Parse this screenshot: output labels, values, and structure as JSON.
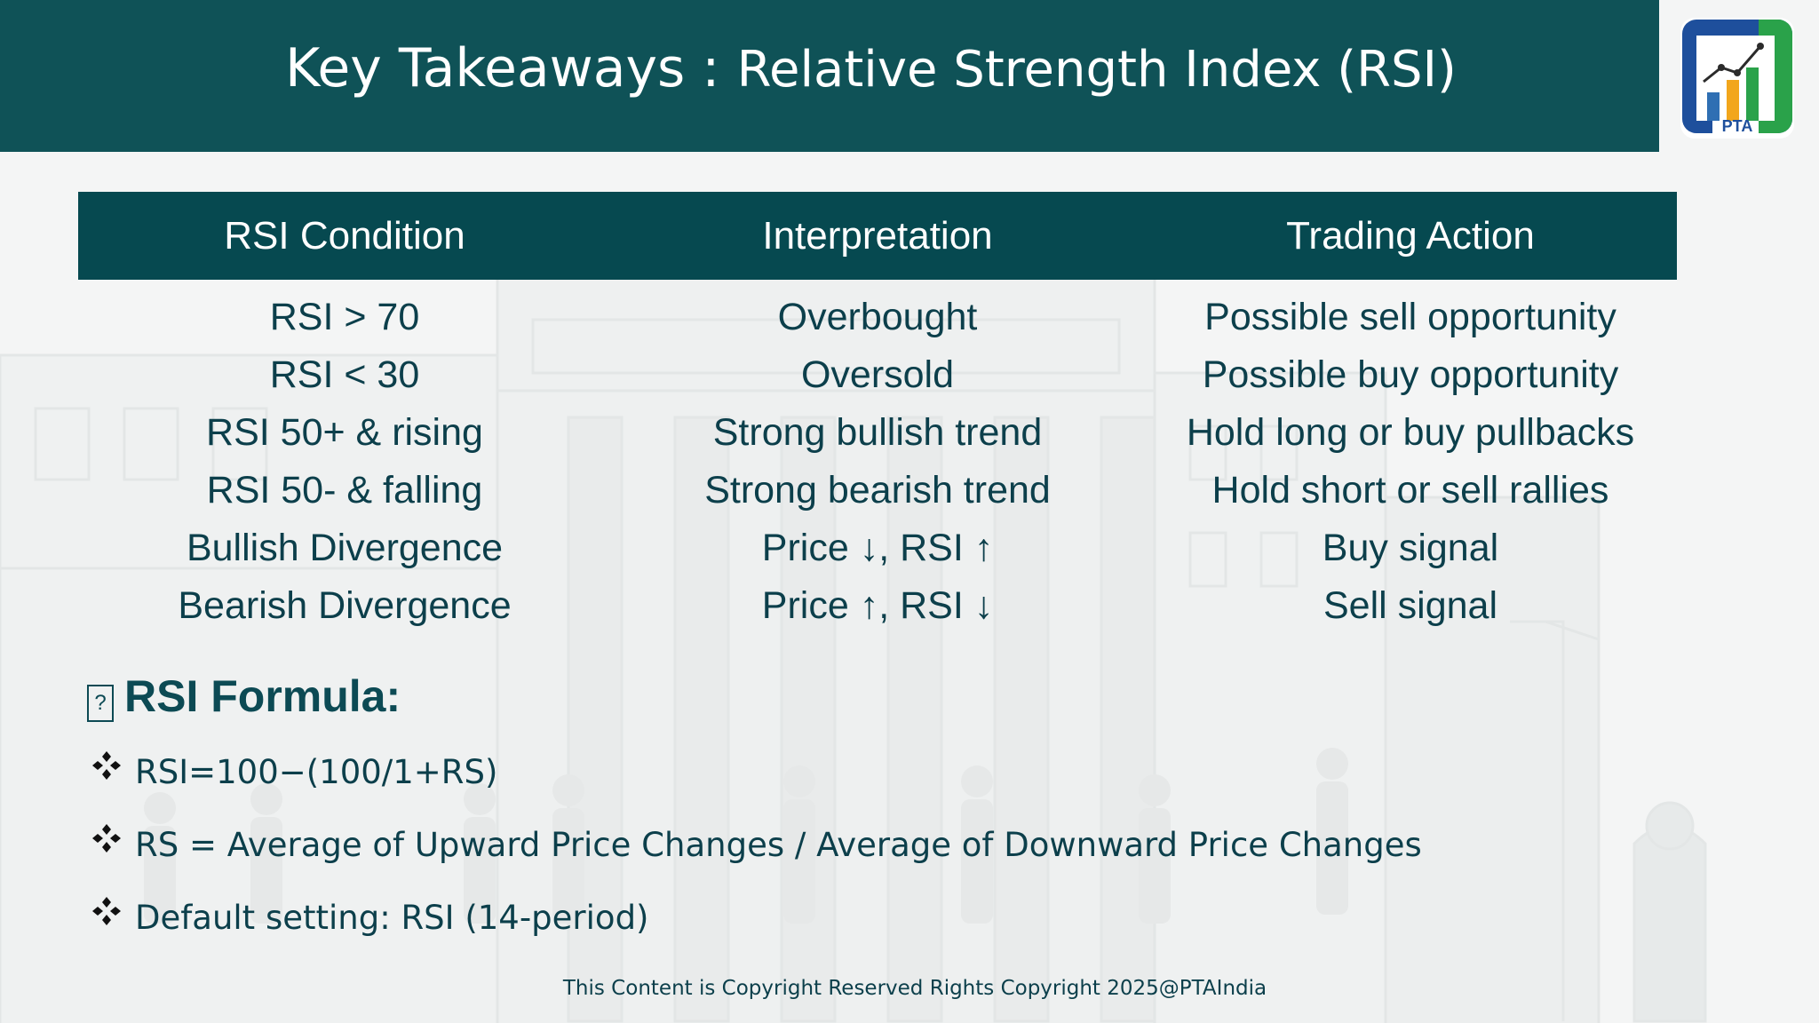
{
  "title": {
    "main": "Key Takeaways",
    "separator": " : ",
    "subtitle": "Relative Strength Index (RSI)"
  },
  "logo": {
    "text": "PTA",
    "icon": "bar-chart-trend-logo"
  },
  "table": {
    "headers": [
      "RSI Condition",
      "Interpretation",
      "Trading Action"
    ],
    "rows": [
      [
        "RSI > 70",
        "Overbought",
        "Possible sell opportunity"
      ],
      [
        "RSI < 30",
        "Oversold",
        "Possible buy opportunity"
      ],
      [
        "RSI 50+ & rising",
        "Strong bullish trend",
        "Hold long or buy pullbacks"
      ],
      [
        "RSI 50- & falling",
        "Strong bearish trend",
        "Hold short or sell rallies"
      ],
      [
        "Bullish Divergence",
        "Price ↓, RSI ↑",
        "Buy signal"
      ],
      [
        "Bearish Divergence",
        "Price ↑, RSI ↓",
        "Sell signal"
      ]
    ]
  },
  "formula": {
    "icon_glyph": "?",
    "heading": "RSI Formula:",
    "bullets": [
      "RSI=100−(100/1+RS)",
      "RS = Average of Upward Price Changes / Average of Downward Price Changes",
      "Default setting: RSI (14-period)"
    ]
  },
  "footer": "This Content is Copyright Reserved Rights Copyright 2025@PTAIndia",
  "colors": {
    "header_bg": "#0f5257",
    "table_header_bg": "#064950",
    "text": "#0c3f4b",
    "background": "#f4f5f5"
  }
}
